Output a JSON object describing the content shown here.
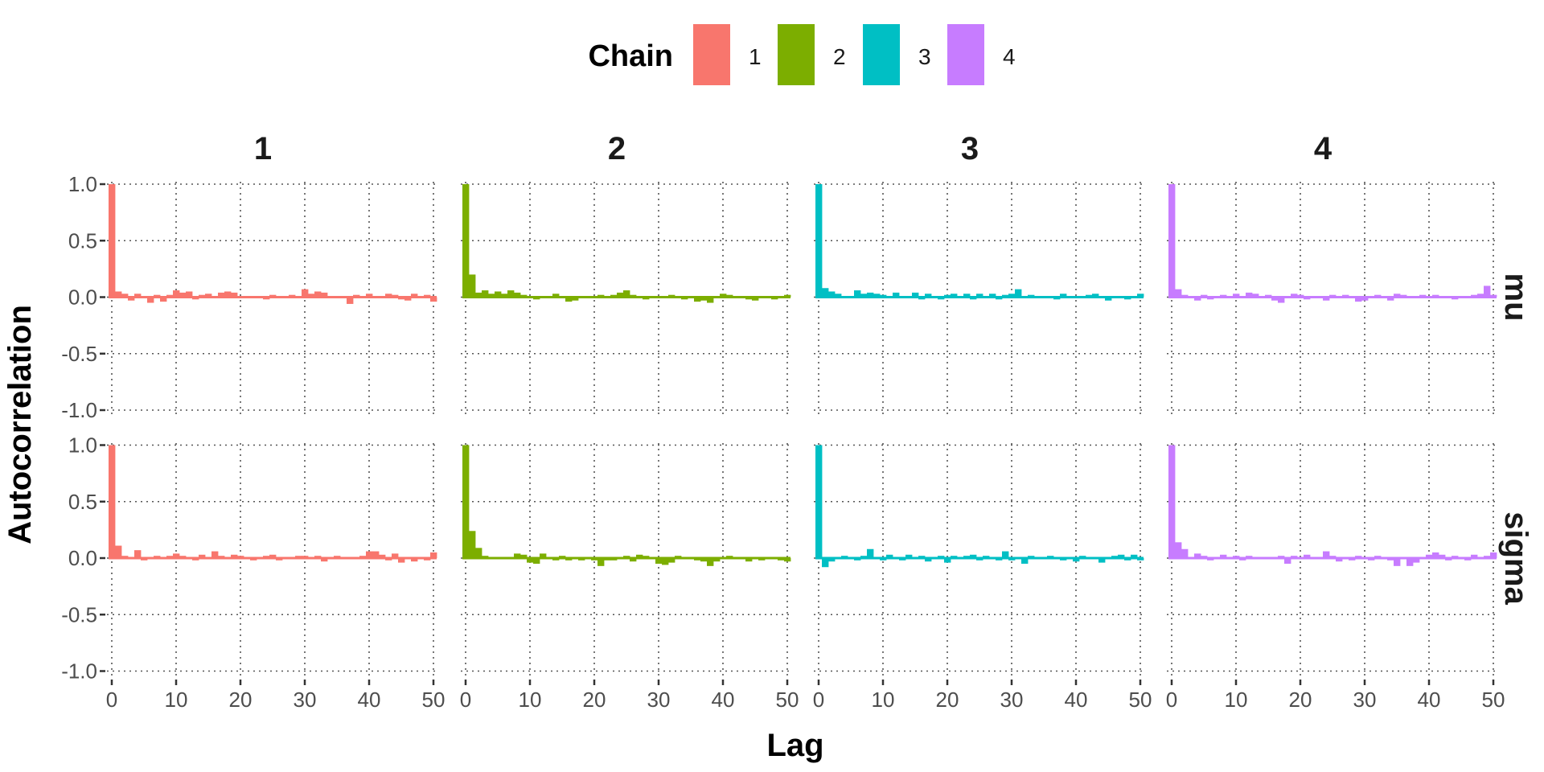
{
  "legend": {
    "title": "Chain",
    "items": [
      {
        "label": "1",
        "color": "#F8766D"
      },
      {
        "label": "2",
        "color": "#7CAE00"
      },
      {
        "label": "3",
        "color": "#00BFC4"
      },
      {
        "label": "4",
        "color": "#C77CFF"
      }
    ]
  },
  "chart_data": {
    "type": "bar",
    "xlabel": "Lag",
    "ylabel": "Autocorrelation",
    "xlim": [
      0,
      50
    ],
    "ylim": [
      -1,
      1
    ],
    "x_ticks": [
      0,
      10,
      20,
      30,
      40,
      50
    ],
    "y_ticks": [
      -1.0,
      -0.5,
      0.0,
      0.5,
      1.0
    ],
    "grid": "dotted",
    "legend_position": "top",
    "column_facets": [
      "1",
      "2",
      "3",
      "4"
    ],
    "row_facets": [
      "mu",
      "sigma"
    ],
    "lags": [
      0,
      1,
      2,
      3,
      4,
      5,
      6,
      7,
      8,
      9,
      10,
      11,
      12,
      13,
      14,
      15,
      16,
      17,
      18,
      19,
      20,
      21,
      22,
      23,
      24,
      25,
      26,
      27,
      28,
      29,
      30,
      31,
      32,
      33,
      34,
      35,
      36,
      37,
      38,
      39,
      40,
      41,
      42,
      43,
      44,
      45,
      46,
      47,
      48,
      49,
      50
    ],
    "panels": [
      {
        "parameter": "mu",
        "chain": "1",
        "color": "#F8766D",
        "values": [
          1.0,
          0.05,
          0.03,
          -0.03,
          0.03,
          0.0,
          -0.05,
          0.02,
          -0.04,
          0.02,
          0.06,
          0.04,
          0.05,
          -0.02,
          0.02,
          0.03,
          0.0,
          0.04,
          0.05,
          0.04,
          -0.01,
          0.0,
          -0.01,
          0.0,
          -0.02,
          0.02,
          -0.01,
          0.0,
          0.02,
          0.0,
          0.07,
          0.03,
          0.05,
          0.04,
          0.0,
          0.01,
          0.0,
          -0.06,
          0.02,
          0.0,
          0.03,
          -0.01,
          0.0,
          0.03,
          0.02,
          -0.02,
          -0.03,
          0.03,
          0.0,
          0.02,
          -0.04
        ]
      },
      {
        "parameter": "mu",
        "chain": "2",
        "color": "#7CAE00",
        "values": [
          1.0,
          0.2,
          0.04,
          0.06,
          0.03,
          0.05,
          0.03,
          0.06,
          0.04,
          0.02,
          0.01,
          -0.02,
          0.01,
          0.0,
          0.03,
          0.01,
          -0.04,
          -0.03,
          0.0,
          0.01,
          0.0,
          0.02,
          0.01,
          0.02,
          0.04,
          0.06,
          0.02,
          0.0,
          -0.02,
          -0.01,
          0.0,
          0.0,
          0.02,
          0.0,
          -0.02,
          -0.01,
          -0.04,
          -0.03,
          -0.05,
          0.0,
          0.03,
          0.02,
          -0.01,
          0.0,
          -0.02,
          -0.03,
          -0.01,
          0.0,
          -0.02,
          0.0,
          0.02
        ]
      },
      {
        "parameter": "mu",
        "chain": "3",
        "color": "#00BFC4",
        "values": [
          1.0,
          0.08,
          0.05,
          0.03,
          0.0,
          0.01,
          0.06,
          0.03,
          0.04,
          0.03,
          0.02,
          0.0,
          0.04,
          0.01,
          0.0,
          0.04,
          -0.02,
          0.03,
          0.0,
          -0.02,
          0.02,
          0.03,
          0.0,
          0.03,
          -0.02,
          0.03,
          0.0,
          0.03,
          -0.02,
          0.02,
          0.03,
          0.07,
          0.0,
          0.02,
          -0.01,
          0.01,
          0.0,
          -0.02,
          0.03,
          0.0,
          -0.01,
          0.0,
          0.02,
          0.03,
          0.01,
          -0.03,
          0.01,
          0.0,
          -0.02,
          0.0,
          0.03
        ]
      },
      {
        "parameter": "mu",
        "chain": "4",
        "color": "#C77CFF",
        "values": [
          1.0,
          0.07,
          0.02,
          0.0,
          -0.03,
          0.02,
          -0.02,
          0.0,
          0.02,
          0.0,
          0.03,
          0.0,
          0.04,
          0.03,
          0.0,
          0.02,
          -0.03,
          -0.05,
          -0.01,
          0.03,
          0.02,
          -0.02,
          0.01,
          0.0,
          -0.03,
          0.02,
          0.0,
          0.02,
          0.0,
          -0.04,
          -0.03,
          -0.01,
          0.02,
          0.0,
          -0.03,
          0.03,
          0.02,
          0.0,
          -0.01,
          0.02,
          0.0,
          0.02,
          -0.01,
          0.0,
          -0.02,
          0.0,
          0.0,
          0.02,
          0.03,
          0.1,
          0.02
        ]
      },
      {
        "parameter": "sigma",
        "chain": "1",
        "color": "#F8766D",
        "values": [
          1.0,
          0.11,
          0.02,
          0.0,
          0.07,
          -0.02,
          0.0,
          0.02,
          -0.01,
          0.02,
          0.04,
          0.02,
          0.01,
          -0.02,
          0.03,
          0.0,
          0.06,
          0.02,
          -0.01,
          0.03,
          0.02,
          0.0,
          -0.02,
          0.0,
          0.02,
          0.03,
          -0.02,
          0.0,
          0.0,
          0.02,
          0.02,
          0.0,
          0.02,
          -0.03,
          0.0,
          0.02,
          0.0,
          -0.01,
          0.0,
          0.02,
          0.06,
          0.06,
          0.03,
          -0.02,
          0.04,
          -0.04,
          0.01,
          -0.03,
          0.0,
          -0.02,
          0.05
        ]
      },
      {
        "parameter": "sigma",
        "chain": "2",
        "color": "#7CAE00",
        "values": [
          1.0,
          0.24,
          0.09,
          0.02,
          0.0,
          -0.01,
          0.0,
          0.0,
          0.04,
          0.03,
          -0.04,
          -0.05,
          0.04,
          0.0,
          -0.02,
          0.02,
          -0.02,
          0.0,
          -0.02,
          0.0,
          -0.02,
          -0.07,
          -0.02,
          -0.02,
          0.0,
          0.02,
          -0.03,
          0.03,
          0.02,
          0.0,
          -0.05,
          -0.06,
          -0.04,
          0.02,
          0.0,
          0.0,
          -0.02,
          -0.03,
          -0.07,
          -0.03,
          0.0,
          0.02,
          -0.01,
          0.0,
          -0.03,
          0.0,
          -0.02,
          -0.01,
          0.0,
          -0.02,
          -0.03
        ]
      },
      {
        "parameter": "sigma",
        "chain": "3",
        "color": "#00BFC4",
        "values": [
          1.0,
          -0.08,
          -0.03,
          -0.01,
          0.02,
          0.01,
          -0.02,
          0.02,
          0.08,
          0.0,
          -0.02,
          0.03,
          0.01,
          -0.02,
          0.03,
          0.0,
          0.02,
          -0.03,
          0.0,
          0.02,
          -0.04,
          0.02,
          -0.01,
          0.02,
          0.03,
          -0.02,
          0.02,
          0.0,
          -0.02,
          0.06,
          -0.02,
          0.0,
          -0.05,
          0.02,
          -0.01,
          0.0,
          0.02,
          0.0,
          -0.02,
          0.0,
          -0.03,
          0.02,
          0.01,
          0.0,
          -0.04,
          0.0,
          0.02,
          0.03,
          -0.02,
          0.03,
          -0.02
        ]
      },
      {
        "parameter": "sigma",
        "chain": "4",
        "color": "#C77CFF",
        "values": [
          1.0,
          0.14,
          0.08,
          0.0,
          0.04,
          0.02,
          -0.02,
          0.0,
          0.03,
          0.0,
          0.02,
          -0.02,
          0.02,
          0.0,
          0.01,
          -0.01,
          0.0,
          0.02,
          -0.05,
          0.02,
          0.0,
          0.03,
          -0.01,
          0.0,
          0.06,
          0.02,
          -0.03,
          0.0,
          -0.02,
          0.02,
          0.0,
          -0.02,
          0.02,
          0.01,
          -0.02,
          -0.07,
          0.0,
          -0.07,
          -0.04,
          0.0,
          0.03,
          0.05,
          0.03,
          -0.02,
          0.02,
          0.0,
          -0.02,
          0.03,
          0.0,
          0.02,
          0.05
        ]
      }
    ]
  }
}
